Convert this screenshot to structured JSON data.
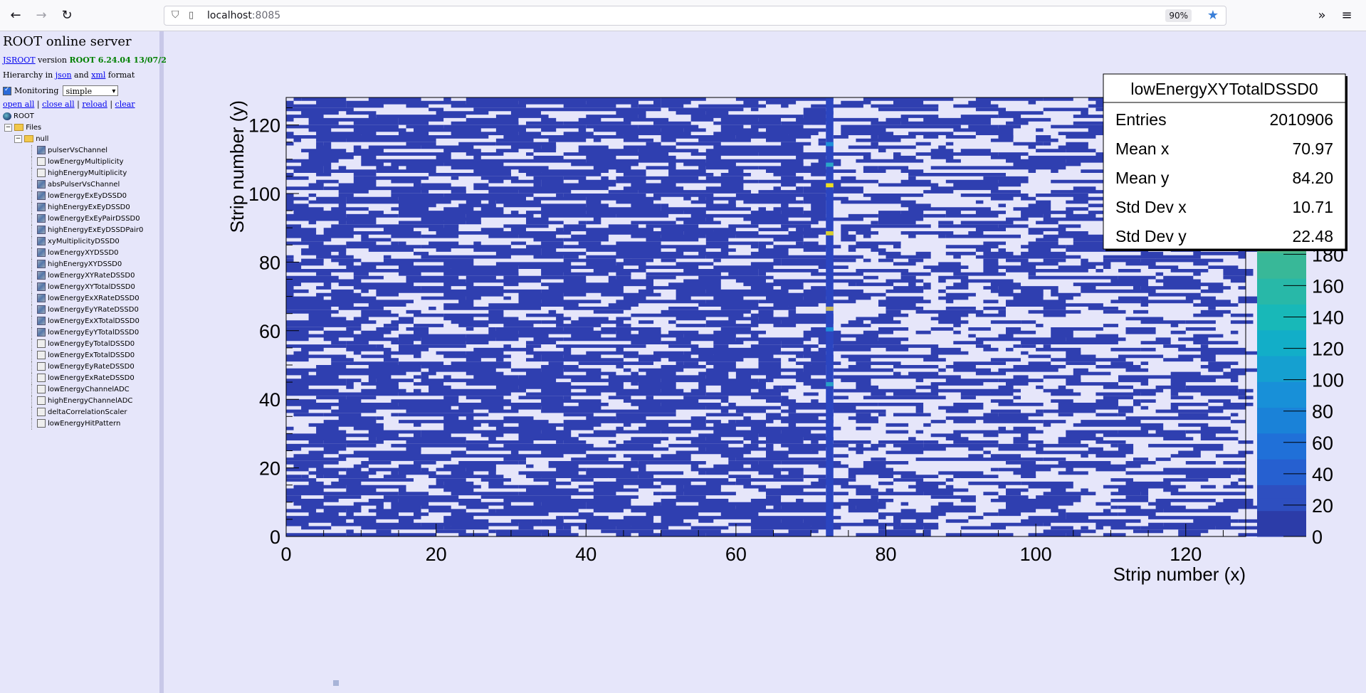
{
  "browser": {
    "url_host": "localhost",
    "url_port": ":8085",
    "zoom": "90%"
  },
  "sidebar": {
    "title": "ROOT online server",
    "jsroot_link": "JSROOT",
    "version_word": "version",
    "version_value": "ROOT 6.24.04 13/07/2",
    "hier_prefix": "Hierarchy in",
    "hier_json": "json",
    "hier_and": "and",
    "hier_xml": "xml",
    "hier_suffix": "format",
    "monitoring_label": "Monitoring",
    "monitoring_mode": "simple",
    "actions": [
      "open all",
      "close all",
      "reload",
      "clear"
    ],
    "root_label": "ROOT",
    "files_label": "Files",
    "null_label": "null",
    "items": [
      {
        "label": "pulserVsChannel",
        "icon": "h2"
      },
      {
        "label": "lowEnergyMultiplicity",
        "icon": "h1"
      },
      {
        "label": "highEnergyMultiplicity",
        "icon": "h1"
      },
      {
        "label": "absPulserVsChannel",
        "icon": "h2"
      },
      {
        "label": "lowEnergyExEyDSSD0",
        "icon": "h2"
      },
      {
        "label": "highEnergyExEyDSSD0",
        "icon": "h2"
      },
      {
        "label": "lowEnergyExEyPairDSSD0",
        "icon": "h2"
      },
      {
        "label": "highEnergyExEyDSSDPair0",
        "icon": "h2"
      },
      {
        "label": "xyMultiplicityDSSD0",
        "icon": "h2"
      },
      {
        "label": "lowEnergyXYDSSD0",
        "icon": "h2"
      },
      {
        "label": "highEnergyXYDSSD0",
        "icon": "h2"
      },
      {
        "label": "lowEnergyXYRateDSSD0",
        "icon": "h2"
      },
      {
        "label": "lowEnergyXYTotalDSSD0",
        "icon": "h2"
      },
      {
        "label": "lowEnergyExXRateDSSD0",
        "icon": "h2"
      },
      {
        "label": "lowEnergyEyYRateDSSD0",
        "icon": "h2"
      },
      {
        "label": "lowEnergyExXTotalDSSD0",
        "icon": "h2"
      },
      {
        "label": "lowEnergyEyYTotalDSSD0",
        "icon": "h2"
      },
      {
        "label": "lowEnergyEyTotalDSSD0",
        "icon": "h1"
      },
      {
        "label": "lowEnergyExTotalDSSD0",
        "icon": "h1"
      },
      {
        "label": "lowEnergyEyRateDSSD0",
        "icon": "h1"
      },
      {
        "label": "lowEnergyExRateDSSD0",
        "icon": "h1"
      },
      {
        "label": "lowEnergyChannelADC",
        "icon": "h1"
      },
      {
        "label": "highEnergyChannelADC",
        "icon": "h1"
      },
      {
        "label": "deltaCorrelationScaler",
        "icon": "h1"
      },
      {
        "label": "lowEnergyHitPattern",
        "icon": "h1"
      }
    ]
  },
  "chart_data": {
    "type": "heatmap",
    "xlabel": "Strip number (x)",
    "ylabel": "Strip number (y)",
    "xlim": [
      0,
      128
    ],
    "ylim": [
      0,
      128
    ],
    "x_ticks": [
      0,
      20,
      40,
      60,
      80,
      100,
      120
    ],
    "y_ticks": [
      0,
      20,
      40,
      60,
      80,
      100,
      120
    ],
    "z_ticks": [
      0,
      20,
      40,
      60,
      80,
      100,
      120,
      140,
      160,
      180
    ],
    "zlim": [
      0,
      280
    ],
    "hot_column_x": 72,
    "colors": {
      "low": "#2f3fb0",
      "empty": "#ffffff"
    },
    "stats": {
      "name": "lowEnergyXYTotalDSSD0",
      "rows": [
        {
          "label": "Entries",
          "value": "2010906"
        },
        {
          "label": "Mean x",
          "value": "70.97"
        },
        {
          "label": "Mean y",
          "value": "84.20"
        },
        {
          "label": "Std Dev x",
          "value": "10.71"
        },
        {
          "label": "Std Dev y",
          "value": "22.48"
        }
      ]
    }
  }
}
